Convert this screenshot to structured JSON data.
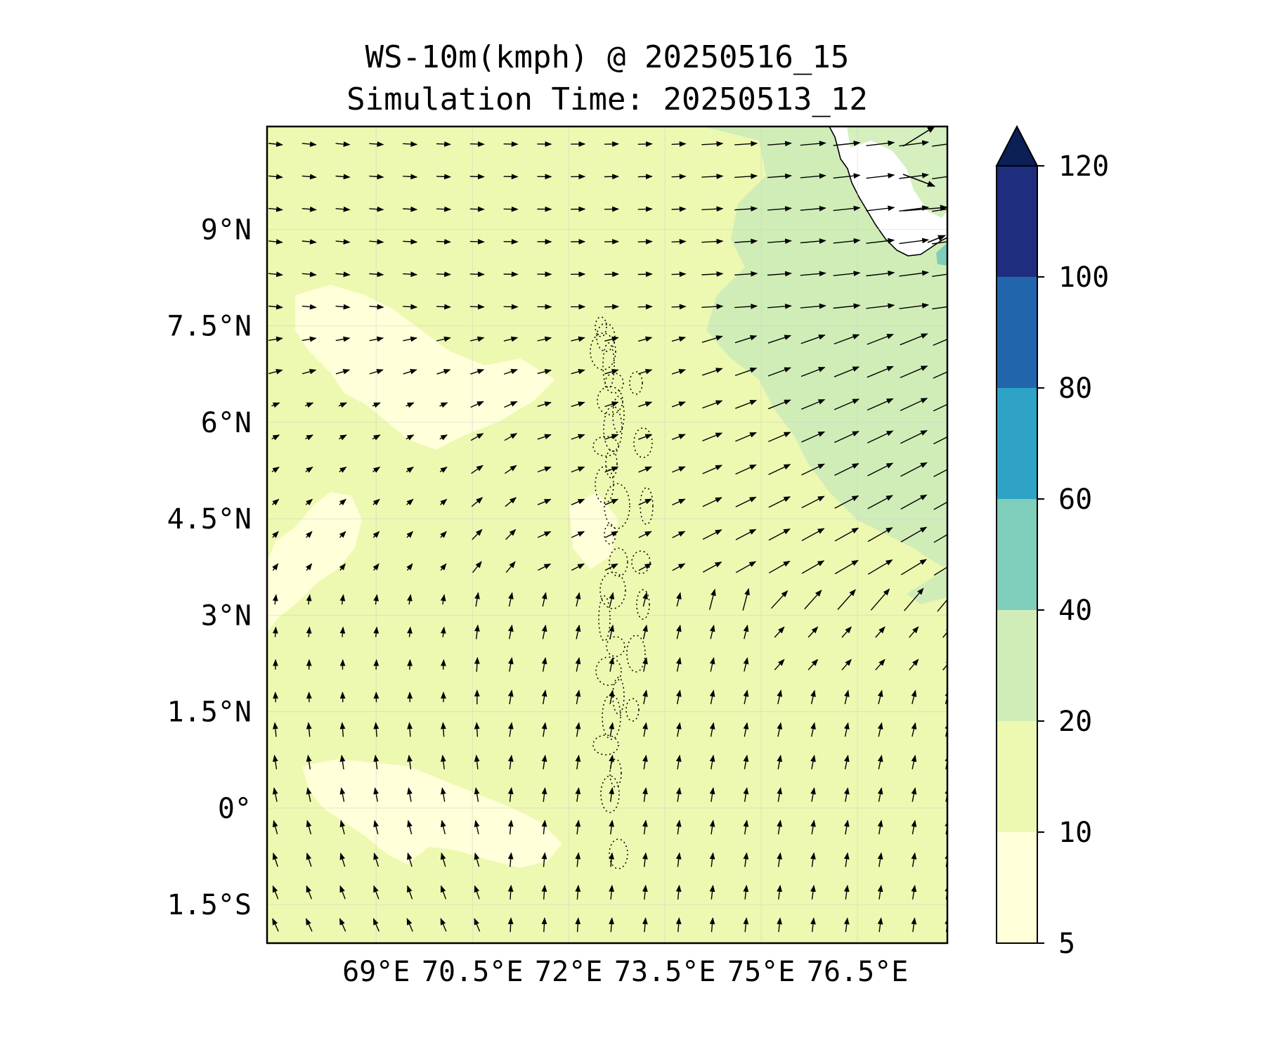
{
  "title": {
    "line1": "WS-10m(kmph) @ 20250516_15",
    "line2": "Simulation Time: 20250513_12"
  },
  "map": {
    "lon_range": [
      67.3,
      77.9
    ],
    "lat_range": [
      -2.1,
      10.6
    ],
    "lat_ticks": [
      {
        "value": 9,
        "label": "9°N"
      },
      {
        "value": 7.5,
        "label": "7.5°N"
      },
      {
        "value": 6,
        "label": "6°N"
      },
      {
        "value": 4.5,
        "label": "4.5°N"
      },
      {
        "value": 3,
        "label": "3°N"
      },
      {
        "value": 1.5,
        "label": "1.5°N"
      },
      {
        "value": 0,
        "label": "0°"
      },
      {
        "value": -1.5,
        "label": "1.5°S"
      }
    ],
    "lon_ticks": [
      {
        "value": 69,
        "label": "69°E"
      },
      {
        "value": 70.5,
        "label": "70.5°E"
      },
      {
        "value": 72,
        "label": "72°E"
      },
      {
        "value": 73.5,
        "label": "73.5°E"
      },
      {
        "value": 75,
        "label": "75°E"
      },
      {
        "value": 76.5,
        "label": "76.5°E"
      }
    ],
    "gridlines": true
  },
  "colorbar": {
    "levels": [
      {
        "from": 5,
        "to": 10,
        "color": "#ffffd9"
      },
      {
        "from": 10,
        "to": 20,
        "color": "#edf8b1"
      },
      {
        "from": 20,
        "to": 40,
        "color": "#d0edb8"
      },
      {
        "from": 40,
        "to": 60,
        "color": "#7fcdbb"
      },
      {
        "from": 60,
        "to": 80,
        "color": "#2ea3c6"
      },
      {
        "from": 80,
        "to": 100,
        "color": "#2166ac"
      },
      {
        "from": 100,
        "to": 120,
        "color": "#1e2d7e"
      }
    ],
    "extend_color": "#0c1f56",
    "tick_labels": [
      "5",
      "10",
      "20",
      "40",
      "60",
      "80",
      "100",
      "120"
    ],
    "extend": "max"
  },
  "colors": {
    "land": "#ffffff",
    "coastline": "#000000",
    "arrow": "#000000"
  }
}
